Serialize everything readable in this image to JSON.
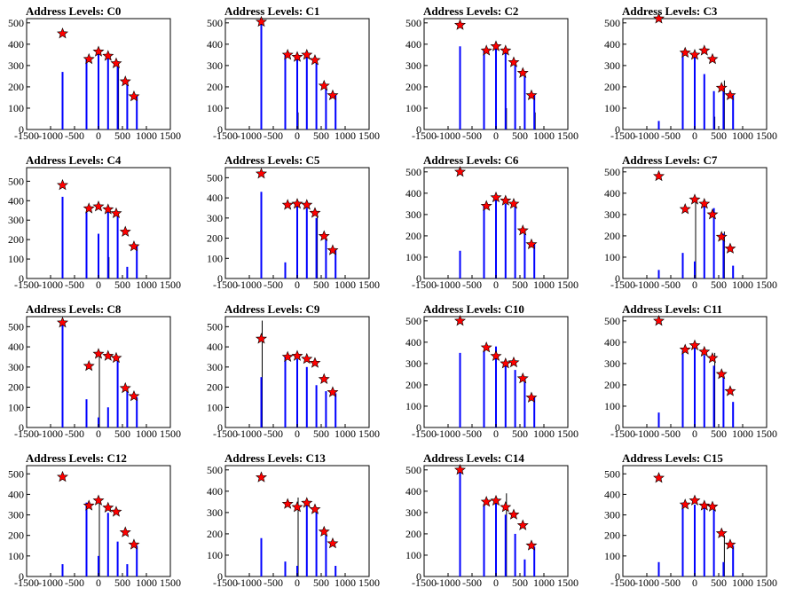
{
  "colors": {
    "histogram": "#0000ff",
    "secondary": "#000000",
    "marker": "#ff0000",
    "frame": "#000000",
    "background": "#ffffff"
  },
  "chart_data": [
    {
      "type": "bar",
      "title": "Address Levels: C0",
      "xlim": [
        -1500,
        1500
      ],
      "ylim": [
        0,
        520
      ],
      "grid": false,
      "x": [
        -750,
        -250,
        0,
        200,
        400,
        600,
        800
      ],
      "values": [
        270,
        330,
        370,
        350,
        320,
        230,
        160
      ],
      "secondary_values": [
        0,
        0,
        0,
        0,
        320,
        0,
        0
      ],
      "peak_markers": [
        {
          "x": -750,
          "y": 450
        },
        {
          "x": -200,
          "y": 330
        },
        {
          "x": 0,
          "y": 365
        },
        {
          "x": 200,
          "y": 345
        },
        {
          "x": 370,
          "y": 310
        },
        {
          "x": 560,
          "y": 225
        },
        {
          "x": 740,
          "y": 155
        }
      ],
      "xticks": [
        -1500,
        -1000,
        -500,
        0,
        500,
        1000,
        1500
      ],
      "yticks": [
        0,
        100,
        200,
        300,
        400,
        500
      ]
    },
    {
      "type": "bar",
      "title": "Address Levels: C1",
      "xlim": [
        -1500,
        1500
      ],
      "ylim": [
        0,
        520
      ],
      "grid": false,
      "x": [
        -750,
        -250,
        0,
        200,
        400,
        600,
        800
      ],
      "values": [
        510,
        350,
        345,
        350,
        330,
        200,
        160
      ],
      "secondary_values": [
        0,
        0,
        80,
        0,
        0,
        0,
        0
      ],
      "peak_markers": [
        {
          "x": -750,
          "y": 505
        },
        {
          "x": -200,
          "y": 350
        },
        {
          "x": 0,
          "y": 340
        },
        {
          "x": 200,
          "y": 350
        },
        {
          "x": 370,
          "y": 325
        },
        {
          "x": 560,
          "y": 205
        },
        {
          "x": 740,
          "y": 160
        }
      ],
      "xticks": [
        -1500,
        -1000,
        -500,
        0,
        500,
        1000,
        1500
      ],
      "yticks": [
        0,
        100,
        200,
        300,
        400,
        500
      ]
    },
    {
      "type": "bar",
      "title": "Address Levels: C2",
      "xlim": [
        -1500,
        1500
      ],
      "ylim": [
        0,
        520
      ],
      "grid": false,
      "x": [
        -750,
        -250,
        0,
        200,
        400,
        600,
        800
      ],
      "values": [
        390,
        370,
        390,
        370,
        320,
        260,
        160
      ],
      "secondary_values": [
        0,
        0,
        0,
        100,
        0,
        0,
        80
      ],
      "peak_markers": [
        {
          "x": -750,
          "y": 490
        },
        {
          "x": -200,
          "y": 370
        },
        {
          "x": 0,
          "y": 390
        },
        {
          "x": 200,
          "y": 370
        },
        {
          "x": 370,
          "y": 315
        },
        {
          "x": 560,
          "y": 265
        },
        {
          "x": 740,
          "y": 160
        }
      ],
      "xticks": [
        -1500,
        -1000,
        -500,
        0,
        500,
        1000,
        1500
      ],
      "yticks": [
        0,
        100,
        200,
        300,
        400,
        500
      ]
    },
    {
      "type": "bar",
      "title": "Address Levels: C3",
      "xlim": [
        -1500,
        1500
      ],
      "ylim": [
        0,
        520
      ],
      "grid": false,
      "x": [
        -750,
        -250,
        0,
        200,
        400,
        600,
        800
      ],
      "values": [
        40,
        360,
        340,
        260,
        180,
        200,
        160
      ],
      "secondary_values": [
        0,
        0,
        0,
        0,
        60,
        230,
        0
      ],
      "peak_markers": [
        {
          "x": -750,
          "y": 520
        },
        {
          "x": -200,
          "y": 360
        },
        {
          "x": 0,
          "y": 350
        },
        {
          "x": 200,
          "y": 370
        },
        {
          "x": 370,
          "y": 330
        },
        {
          "x": 560,
          "y": 195
        },
        {
          "x": 740,
          "y": 160
        }
      ],
      "xticks": [
        -1500,
        -1000,
        -500,
        0,
        500,
        1000,
        1500
      ],
      "yticks": [
        0,
        100,
        200,
        300,
        400,
        500
      ]
    },
    {
      "type": "bar",
      "title": "Address Levels: C4",
      "xlim": [
        -1500,
        1500
      ],
      "ylim": [
        0,
        570
      ],
      "grid": false,
      "x": [
        -750,
        -250,
        0,
        200,
        400,
        600,
        800
      ],
      "values": [
        420,
        340,
        230,
        360,
        330,
        60,
        170
      ],
      "secondary_values": [
        0,
        0,
        0,
        110,
        0,
        0,
        0
      ],
      "peak_markers": [
        {
          "x": -750,
          "y": 480
        },
        {
          "x": -200,
          "y": 360
        },
        {
          "x": 0,
          "y": 370
        },
        {
          "x": 200,
          "y": 355
        },
        {
          "x": 370,
          "y": 335
        },
        {
          "x": 560,
          "y": 240
        },
        {
          "x": 740,
          "y": 165
        }
      ],
      "xticks": [
        -1500,
        -1000,
        -500,
        0,
        500,
        1000,
        1500
      ],
      "yticks": [
        0,
        100,
        200,
        300,
        400,
        500
      ]
    },
    {
      "type": "bar",
      "title": "Address Levels: C5",
      "xlim": [
        -1500,
        1500
      ],
      "ylim": [
        0,
        550
      ],
      "grid": false,
      "x": [
        -750,
        -250,
        0,
        200,
        400,
        600,
        800
      ],
      "values": [
        430,
        80,
        370,
        350,
        300,
        200,
        140
      ],
      "secondary_values": [
        0,
        0,
        0,
        0,
        330,
        0,
        0
      ],
      "peak_markers": [
        {
          "x": -750,
          "y": 520
        },
        {
          "x": -200,
          "y": 365
        },
        {
          "x": 0,
          "y": 370
        },
        {
          "x": 200,
          "y": 365
        },
        {
          "x": 370,
          "y": 325
        },
        {
          "x": 560,
          "y": 210
        },
        {
          "x": 740,
          "y": 140
        }
      ],
      "xticks": [
        -1500,
        -1000,
        -500,
        0,
        500,
        1000,
        1500
      ],
      "yticks": [
        0,
        100,
        200,
        300,
        400,
        500
      ]
    },
    {
      "type": "bar",
      "title": "Address Levels: C6",
      "xlim": [
        -1500,
        1500
      ],
      "ylim": [
        0,
        520
      ],
      "grid": false,
      "x": [
        -750,
        -250,
        0,
        200,
        400,
        600,
        800
      ],
      "values": [
        130,
        340,
        380,
        350,
        340,
        220,
        160
      ],
      "secondary_values": [
        0,
        0,
        0,
        0,
        0,
        0,
        0
      ],
      "peak_markers": [
        {
          "x": -750,
          "y": 500
        },
        {
          "x": -200,
          "y": 340
        },
        {
          "x": 0,
          "y": 380
        },
        {
          "x": 200,
          "y": 365
        },
        {
          "x": 370,
          "y": 350
        },
        {
          "x": 560,
          "y": 225
        },
        {
          "x": 740,
          "y": 160
        }
      ],
      "xticks": [
        -1500,
        -1000,
        -500,
        0,
        500,
        1000,
        1500
      ],
      "yticks": [
        0,
        100,
        200,
        300,
        400,
        500
      ]
    },
    {
      "type": "bar",
      "title": "Address Levels: C7",
      "xlim": [
        -1500,
        1500
      ],
      "ylim": [
        0,
        520
      ],
      "grid": false,
      "x": [
        -750,
        -250,
        0,
        200,
        400,
        600,
        800
      ],
      "values": [
        40,
        120,
        80,
        340,
        330,
        210,
        60
      ],
      "secondary_values": [
        0,
        0,
        370,
        0,
        0,
        220,
        0
      ],
      "peak_markers": [
        {
          "x": -750,
          "y": 480
        },
        {
          "x": -200,
          "y": 325
        },
        {
          "x": 0,
          "y": 370
        },
        {
          "x": 200,
          "y": 350
        },
        {
          "x": 370,
          "y": 300
        },
        {
          "x": 560,
          "y": 195
        },
        {
          "x": 740,
          "y": 140
        }
      ],
      "xticks": [
        -1500,
        -1000,
        -500,
        0,
        500,
        1000,
        1500
      ],
      "yticks": [
        0,
        100,
        200,
        300,
        400,
        500
      ]
    },
    {
      "type": "bar",
      "title": "Address Levels: C8",
      "xlim": [
        -1500,
        1500
      ],
      "ylim": [
        0,
        550
      ],
      "grid": false,
      "x": [
        -750,
        -250,
        0,
        200,
        400,
        600,
        800
      ],
      "values": [
        510,
        140,
        50,
        100,
        340,
        190,
        150
      ],
      "secondary_values": [
        0,
        0,
        360,
        0,
        0,
        0,
        0
      ],
      "peak_markers": [
        {
          "x": -750,
          "y": 520
        },
        {
          "x": -200,
          "y": 305
        },
        {
          "x": 0,
          "y": 365
        },
        {
          "x": 200,
          "y": 355
        },
        {
          "x": 370,
          "y": 345
        },
        {
          "x": 560,
          "y": 195
        },
        {
          "x": 740,
          "y": 155
        }
      ],
      "xticks": [
        -1500,
        -1000,
        -500,
        0,
        500,
        1000,
        1500
      ],
      "yticks": [
        0,
        100,
        200,
        300,
        400,
        500
      ]
    },
    {
      "type": "bar",
      "title": "Address Levels: C9",
      "xlim": [
        -1500,
        1500
      ],
      "ylim": [
        0,
        550
      ],
      "grid": false,
      "x": [
        -750,
        -250,
        0,
        200,
        400,
        600,
        800
      ],
      "values": [
        250,
        350,
        340,
        300,
        210,
        180,
        170
      ],
      "secondary_values": [
        530,
        0,
        0,
        0,
        0,
        0,
        0
      ],
      "peak_markers": [
        {
          "x": -750,
          "y": 440
        },
        {
          "x": -200,
          "y": 350
        },
        {
          "x": 0,
          "y": 355
        },
        {
          "x": 200,
          "y": 340
        },
        {
          "x": 370,
          "y": 320
        },
        {
          "x": 560,
          "y": 240
        },
        {
          "x": 740,
          "y": 175
        }
      ],
      "xticks": [
        -1500,
        -1000,
        -500,
        0,
        500,
        1000,
        1500
      ],
      "yticks": [
        0,
        100,
        200,
        300,
        400,
        500
      ]
    },
    {
      "type": "bar",
      "title": "Address Levels: C10",
      "xlim": [
        -1500,
        1500
      ],
      "ylim": [
        0,
        520
      ],
      "grid": false,
      "x": [
        -750,
        -250,
        0,
        200,
        400,
        600,
        800
      ],
      "values": [
        350,
        360,
        380,
        310,
        270,
        230,
        140
      ],
      "secondary_values": [
        0,
        0,
        0,
        0,
        0,
        0,
        0
      ],
      "peak_markers": [
        {
          "x": -750,
          "y": 500
        },
        {
          "x": -200,
          "y": 375
        },
        {
          "x": 0,
          "y": 335
        },
        {
          "x": 200,
          "y": 300
        },
        {
          "x": 370,
          "y": 305
        },
        {
          "x": 560,
          "y": 230
        },
        {
          "x": 740,
          "y": 140
        }
      ],
      "xticks": [
        -1500,
        -1000,
        -500,
        0,
        500,
        1000,
        1500
      ],
      "yticks": [
        0,
        100,
        200,
        300,
        400,
        500
      ]
    },
    {
      "type": "bar",
      "title": "Address Levels: C11",
      "xlim": [
        -1500,
        1500
      ],
      "ylim": [
        0,
        520
      ],
      "grid": false,
      "x": [
        -750,
        -250,
        0,
        200,
        400,
        600,
        800
      ],
      "values": [
        70,
        360,
        380,
        340,
        290,
        240,
        120
      ],
      "secondary_values": [
        0,
        0,
        0,
        0,
        350,
        0,
        0
      ],
      "peak_markers": [
        {
          "x": -750,
          "y": 500
        },
        {
          "x": -200,
          "y": 365
        },
        {
          "x": 0,
          "y": 385
        },
        {
          "x": 200,
          "y": 355
        },
        {
          "x": 370,
          "y": 325
        },
        {
          "x": 560,
          "y": 250
        },
        {
          "x": 740,
          "y": 170
        }
      ],
      "xticks": [
        -1500,
        -1000,
        -500,
        0,
        500,
        1000,
        1500
      ],
      "yticks": [
        0,
        100,
        200,
        300,
        400,
        500
      ]
    },
    {
      "type": "bar",
      "title": "Address Levels: C12",
      "xlim": [
        -1500,
        1500
      ],
      "ylim": [
        0,
        540
      ],
      "grid": false,
      "x": [
        -750,
        -250,
        0,
        200,
        400,
        600,
        800
      ],
      "values": [
        60,
        360,
        100,
        310,
        170,
        60,
        150
      ],
      "secondary_values": [
        0,
        0,
        370,
        0,
        0,
        0,
        0
      ],
      "peak_markers": [
        {
          "x": -750,
          "y": 485
        },
        {
          "x": -200,
          "y": 345
        },
        {
          "x": 0,
          "y": 370
        },
        {
          "x": 200,
          "y": 335
        },
        {
          "x": 370,
          "y": 315
        },
        {
          "x": 560,
          "y": 215
        },
        {
          "x": 740,
          "y": 155
        }
      ],
      "xticks": [
        -1500,
        -1000,
        -500,
        0,
        500,
        1000,
        1500
      ],
      "yticks": [
        0,
        100,
        200,
        300,
        400,
        500
      ]
    },
    {
      "type": "bar",
      "title": "Address Levels: C13",
      "xlim": [
        -1500,
        1500
      ],
      "ylim": [
        0,
        520
      ],
      "grid": false,
      "x": [
        -750,
        -250,
        0,
        200,
        400,
        600,
        800
      ],
      "values": [
        180,
        70,
        50,
        350,
        320,
        200,
        50
      ],
      "secondary_values": [
        0,
        0,
        370,
        0,
        0,
        0,
        0
      ],
      "peak_markers": [
        {
          "x": -750,
          "y": 465
        },
        {
          "x": -200,
          "y": 340
        },
        {
          "x": 0,
          "y": 325
        },
        {
          "x": 200,
          "y": 345
        },
        {
          "x": 370,
          "y": 315
        },
        {
          "x": 560,
          "y": 210
        },
        {
          "x": 740,
          "y": 155
        }
      ],
      "xticks": [
        -1500,
        -1000,
        -500,
        0,
        500,
        1000,
        1500
      ],
      "yticks": [
        0,
        100,
        200,
        300,
        400,
        500
      ]
    },
    {
      "type": "bar",
      "title": "Address Levels: C14",
      "xlim": [
        -1500,
        1500
      ],
      "ylim": [
        0,
        520
      ],
      "grid": false,
      "x": [
        -750,
        -250,
        0,
        200,
        400,
        600,
        800
      ],
      "values": [
        500,
        340,
        360,
        290,
        200,
        80,
        140
      ],
      "secondary_values": [
        0,
        0,
        0,
        390,
        0,
        0,
        0
      ],
      "peak_markers": [
        {
          "x": -750,
          "y": 500
        },
        {
          "x": -200,
          "y": 350
        },
        {
          "x": 0,
          "y": 355
        },
        {
          "x": 200,
          "y": 325
        },
        {
          "x": 370,
          "y": 290
        },
        {
          "x": 560,
          "y": 240
        },
        {
          "x": 740,
          "y": 145
        }
      ],
      "xticks": [
        -1500,
        -1000,
        -500,
        0,
        500,
        1000,
        1500
      ],
      "yticks": [
        0,
        100,
        200,
        300,
        400,
        500
      ]
    },
    {
      "type": "bar",
      "title": "Address Levels: C15",
      "xlim": [
        -1500,
        1500
      ],
      "ylim": [
        0,
        540
      ],
      "grid": false,
      "x": [
        -750,
        -250,
        0,
        200,
        400,
        600,
        800
      ],
      "values": [
        70,
        360,
        350,
        340,
        330,
        70,
        150
      ],
      "secondary_values": [
        0,
        0,
        0,
        0,
        0,
        200,
        0
      ],
      "peak_markers": [
        {
          "x": -750,
          "y": 480
        },
        {
          "x": -200,
          "y": 350
        },
        {
          "x": 0,
          "y": 370
        },
        {
          "x": 200,
          "y": 345
        },
        {
          "x": 370,
          "y": 340
        },
        {
          "x": 560,
          "y": 210
        },
        {
          "x": 740,
          "y": 155
        }
      ],
      "xticks": [
        -1500,
        -1000,
        -500,
        0,
        500,
        1000,
        1500
      ],
      "yticks": [
        0,
        100,
        200,
        300,
        400,
        500
      ]
    }
  ]
}
